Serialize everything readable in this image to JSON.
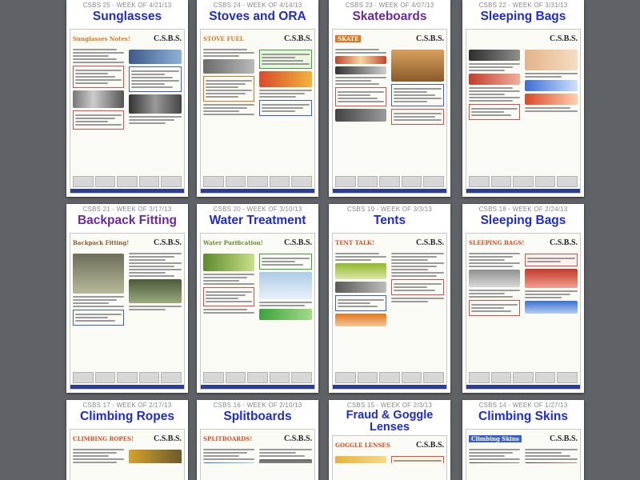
{
  "gallery": {
    "cards": [
      {
        "week": "CSBS 25 - WEEK OF 4/21/13",
        "title": "Sunglasses",
        "color": "#1f2bd4",
        "banner": "Sunglasses Notes!",
        "logo": "C.S.B.S."
      },
      {
        "week": "CSBS 24 - WEEK OF 4/14/13",
        "title": "Stoves and ORA",
        "color": "#1f2bd4",
        "banner": "STOVE FUEL",
        "logo": "C.S.B.S."
      },
      {
        "week": "CSBS 23 - WEEK OF 4/07/13",
        "title": "Skateboards",
        "color": "#6a2aa0",
        "banner": "SKATE",
        "logo": "C.S.B.S."
      },
      {
        "week": "CSBS 22 - WEEK OF 3/31/13",
        "title": "Sleeping Bags",
        "color": "#1f2bd4",
        "banner": "",
        "logo": "C.S.B.S."
      },
      {
        "week": "CSBS 21 - WEEK OF 3/17/13",
        "title": "Backpack Fitting",
        "color": "#6a2aa0",
        "banner": "Backpack Fitting!",
        "logo": "C.S.B.S."
      },
      {
        "week": "CSBS 20 - WEEK OF 3/10/13",
        "title": "Water Treatment",
        "color": "#1f2bd4",
        "banner": "Water Purification!",
        "logo": "C.S.B.S."
      },
      {
        "week": "CSBS 19 - WEEK OF 3/3/13",
        "title": "Tents",
        "color": "#1f2bd4",
        "banner": "TENT TALK!",
        "logo": "C.S.B.S."
      },
      {
        "week": "CSBS 18 - WEEK OF 2/24/13",
        "title": "Sleeping Bags",
        "color": "#1f2bd4",
        "banner": "SLEEPING BAGS!",
        "logo": "C.S.B.S."
      },
      {
        "week": "CSBS 17 - WEEK OF 2/17/13",
        "title": "Climbing Ropes",
        "color": "#1f2bd4",
        "banner": "CLIMBING ROPES!",
        "logo": "C.S.B.S."
      },
      {
        "week": "CSBS 16 - WEEK OF 2/10/13",
        "title": "Splitboards",
        "color": "#1f2bd4",
        "banner": "SPLITBOARDS!",
        "logo": "C.S.B.S."
      },
      {
        "week": "CSBS 15 - WEEK OF 2/3/13",
        "title": "Fraud & Goggle Lenses",
        "color": "#1f2bd4",
        "banner": "GOGGLE LENSES",
        "logo": "C.S.B.S."
      },
      {
        "week": "CSBS 14 - WEEK OF 1/27/13",
        "title": "Climbing Skins",
        "color": "#1f2bd4",
        "banner": "Climbing Skins",
        "logo": "C.S.B.S."
      }
    ]
  }
}
